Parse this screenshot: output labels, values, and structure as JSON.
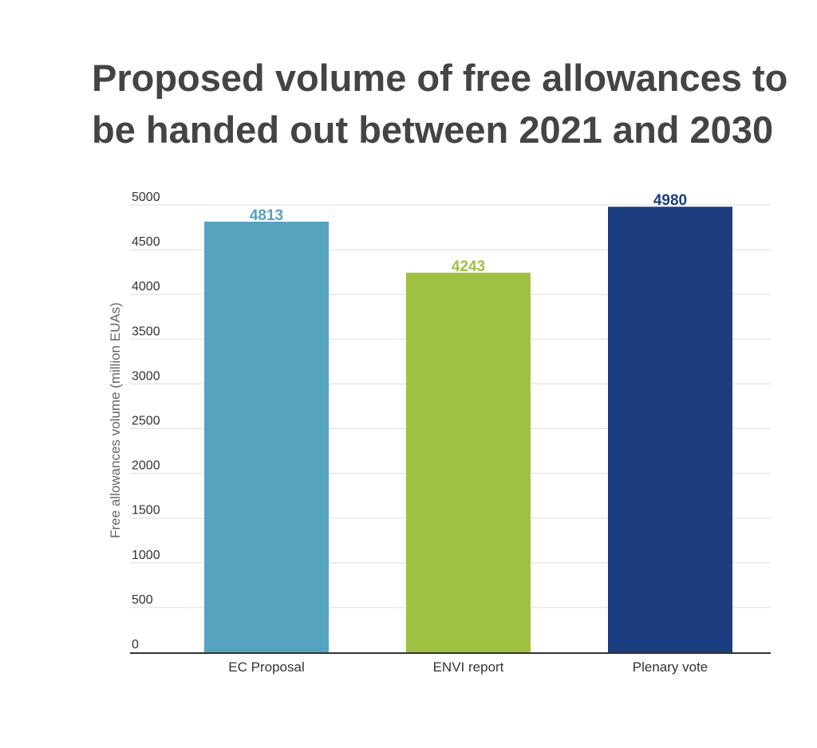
{
  "chart_data": {
    "type": "bar",
    "title_lines": [
      "Proposed volume of free allowances to",
      "be handed out between 2021 and 2030"
    ],
    "ylabel": "Free allowances volume (million EUAs)",
    "xlabel": "",
    "categories": [
      "EC Proposal",
      "ENVI report",
      "Plenary vote"
    ],
    "values": [
      4813,
      4243,
      4980
    ],
    "data_labels": [
      "4813",
      "4243",
      "4980"
    ],
    "bar_colors": [
      "#55A3BE",
      "#9FC142",
      "#1A3D80"
    ],
    "ylim": [
      0,
      5000
    ],
    "yticks": [
      0,
      500,
      1000,
      1500,
      2000,
      2500,
      3000,
      3500,
      4000,
      4500,
      5000
    ],
    "grid": true,
    "legend": "none"
  }
}
